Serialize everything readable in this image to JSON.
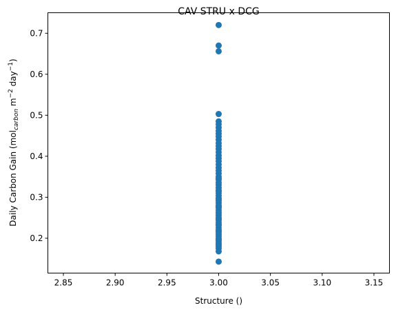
{
  "chart_data": {
    "type": "scatter",
    "title": "CAV STRU x DCG",
    "xlabel": "Structure ()",
    "ylabel": {
      "prefix": "Daily Carbon Gain (mol",
      "subscript": "carbon",
      "middle": " m",
      "sup1": "−2",
      "after_sup1": " day",
      "sup2": "−1",
      "suffix": ")"
    },
    "xlim": [
      2.835,
      3.165
    ],
    "ylim": [
      0.115,
      0.75
    ],
    "x_ticks": [
      2.85,
      2.9,
      2.95,
      3.0,
      3.05,
      3.1,
      3.15
    ],
    "x_tick_labels": [
      "2.85",
      "2.90",
      "2.95",
      "3.00",
      "3.05",
      "3.10",
      "3.15"
    ],
    "y_ticks": [
      0.2,
      0.3,
      0.4,
      0.5,
      0.6,
      0.7
    ],
    "y_tick_labels": [
      "0.2",
      "0.3",
      "0.4",
      "0.5",
      "0.6",
      "0.7"
    ],
    "grid": false,
    "marker_color": "#1f77b4",
    "series": [
      {
        "x": [
          3.0,
          3.0,
          3.0,
          3.0,
          3.0,
          3.0,
          3.0,
          3.0,
          3.0,
          3.0,
          3.0,
          3.0,
          3.0,
          3.0,
          3.0,
          3.0,
          3.0,
          3.0,
          3.0,
          3.0,
          3.0,
          3.0,
          3.0,
          3.0,
          3.0,
          3.0,
          3.0,
          3.0,
          3.0,
          3.0,
          3.0,
          3.0,
          3.0,
          3.0,
          3.0,
          3.0,
          3.0,
          3.0,
          3.0,
          3.0,
          3.0,
          3.0,
          3.0,
          3.0,
          3.0,
          3.0,
          3.0,
          3.0,
          3.0,
          3.0,
          3.0,
          3.0,
          3.0,
          3.0,
          3.0,
          3.0,
          3.0,
          3.0,
          3.0,
          3.0,
          3.0,
          3.0,
          3.0,
          3.0,
          3.0
        ],
        "y": [
          0.72,
          0.67,
          0.656,
          0.503,
          0.485,
          0.478,
          0.47,
          0.462,
          0.455,
          0.448,
          0.44,
          0.432,
          0.425,
          0.418,
          0.41,
          0.402,
          0.395,
          0.388,
          0.38,
          0.372,
          0.365,
          0.358,
          0.35,
          0.343,
          0.336,
          0.33,
          0.323,
          0.317,
          0.31,
          0.304,
          0.298,
          0.292,
          0.286,
          0.28,
          0.274,
          0.268,
          0.262,
          0.256,
          0.25,
          0.244,
          0.238,
          0.232,
          0.226,
          0.22,
          0.215,
          0.21,
          0.205,
          0.2,
          0.195,
          0.19,
          0.185,
          0.18,
          0.175,
          0.168,
          0.143,
          0.345,
          0.315,
          0.295,
          0.277,
          0.262,
          0.247,
          0.233,
          0.217,
          0.197,
          0.185
        ]
      }
    ]
  }
}
